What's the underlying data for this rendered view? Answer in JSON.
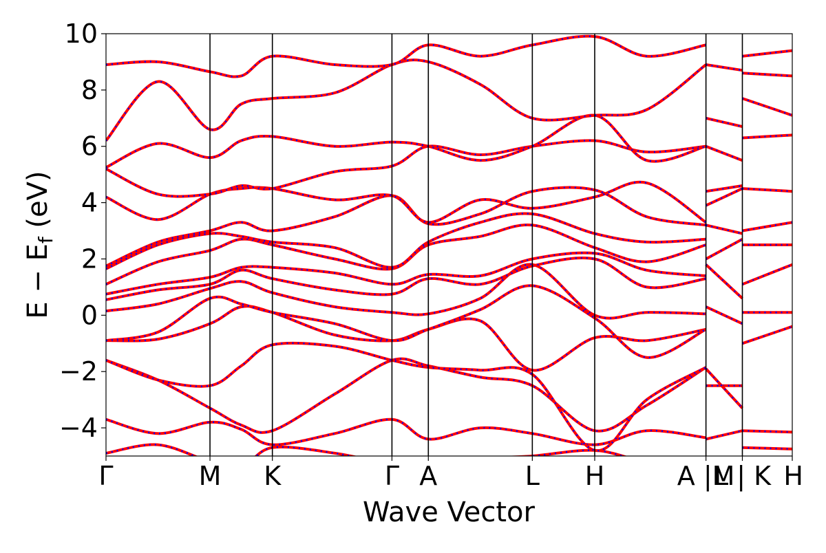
{
  "chart_data": {
    "type": "line",
    "title": "",
    "xlabel": "Wave Vector",
    "ylabel": "E − E",
    "ylabel_subscript": "f",
    "ylabel_unit": " (eV)",
    "ylim": [
      -5,
      10
    ],
    "yticks": [
      -4,
      -2,
      0,
      2,
      4,
      6,
      8,
      10
    ],
    "ytick_labels": [
      "−4",
      "−2",
      "0",
      "2",
      "4",
      "6",
      "8",
      "10"
    ],
    "xlim": [
      0,
      6.6
    ],
    "kpoint_ticks": [
      {
        "x": 0.0,
        "label": "Γ"
      },
      {
        "x": 1.0,
        "label": "M"
      },
      {
        "x": 1.6,
        "label": "K"
      },
      {
        "x": 2.75,
        "label": "Γ"
      },
      {
        "x": 3.1,
        "label": "A"
      },
      {
        "x": 4.1,
        "label": "L"
      },
      {
        "x": 4.7,
        "label": "H"
      },
      {
        "x": 5.77,
        "label": "A |M"
      },
      {
        "x": 6.12,
        "label": "L | K"
      },
      {
        "x": 6.6,
        "label": "H"
      }
    ],
    "grid": false,
    "legend": "none",
    "colors": {
      "band_solid": "#ff0000",
      "band_dashed": "#0000ff",
      "axes": "#000000"
    },
    "series": [
      {
        "x": [
          0,
          0.5,
          1.0,
          1.3,
          1.6,
          2.2,
          2.75,
          3.1,
          3.6,
          4.1,
          4.7,
          5.2,
          5.77
        ],
        "y": [
          -4.9,
          -4.6,
          -5.2,
          -5.4,
          -4.7,
          -4.9,
          -5.3,
          -5.4,
          -5.1,
          -5.0,
          -4.8,
          -5.2,
          -5.3
        ]
      },
      {
        "x": [
          0,
          0.5,
          1.0,
          1.3,
          1.6,
          2.2,
          2.75,
          3.1,
          3.6,
          4.1,
          4.7,
          5.2,
          5.77
        ],
        "y": [
          -3.7,
          -4.2,
          -3.8,
          -4.05,
          -4.6,
          -4.2,
          -3.7,
          -4.4,
          -4.0,
          -4.2,
          -4.6,
          -4.1,
          -4.35
        ]
      },
      {
        "x": [
          0,
          0.5,
          1.0,
          1.3,
          1.6,
          2.2,
          2.75,
          3.1,
          3.6,
          4.1,
          4.7,
          5.2,
          5.77
        ],
        "y": [
          -1.6,
          -2.3,
          -3.3,
          -3.9,
          -4.1,
          -2.8,
          -1.6,
          -1.8,
          -2.2,
          -2.5,
          -4.1,
          -3.2,
          -1.85
        ]
      },
      {
        "x": [
          0,
          0.5,
          1.0,
          1.3,
          1.6,
          2.2,
          2.75,
          3.1,
          3.6,
          4.1,
          4.7,
          5.2,
          5.77
        ],
        "y": [
          -1.6,
          -2.3,
          -2.5,
          -1.8,
          -1.05,
          -1.1,
          -1.6,
          -1.85,
          -1.95,
          -2.1,
          -4.8,
          -3.0,
          -1.85
        ]
      },
      {
        "x": [
          0,
          0.5,
          1.0,
          1.3,
          1.6,
          2.2,
          2.75,
          3.1,
          3.6,
          4.1,
          4.7,
          5.2,
          5.77
        ],
        "y": [
          -0.9,
          -0.85,
          -0.3,
          0.3,
          0.1,
          -0.7,
          -0.9,
          -0.5,
          -0.2,
          -1.95,
          -0.8,
          -0.9,
          -0.5
        ]
      },
      {
        "x": [
          0,
          0.5,
          1.0,
          1.3,
          1.6,
          2.2,
          2.75,
          3.1,
          3.6,
          4.1,
          4.7,
          5.2,
          5.77
        ],
        "y": [
          -0.9,
          -0.6,
          0.6,
          0.4,
          0.1,
          -0.3,
          -0.9,
          -0.5,
          0.2,
          1.05,
          -0.1,
          -1.5,
          -0.5
        ]
      },
      {
        "x": [
          0,
          0.5,
          1.0,
          1.3,
          1.6,
          2.2,
          2.75,
          3.1,
          3.6,
          4.1,
          4.7,
          5.2,
          5.77
        ],
        "y": [
          0.15,
          0.4,
          0.95,
          1.2,
          0.8,
          0.3,
          0.1,
          0.05,
          0.6,
          1.8,
          0.0,
          0.1,
          0.05
        ]
      },
      {
        "x": [
          0,
          0.5,
          1.0,
          1.3,
          1.6,
          2.2,
          2.75,
          3.1,
          3.6,
          4.1,
          4.7,
          5.2,
          5.77
        ],
        "y": [
          0.55,
          0.9,
          1.1,
          1.6,
          1.3,
          0.9,
          0.75,
          1.3,
          1.1,
          1.75,
          2.0,
          1.0,
          1.3
        ]
      },
      {
        "x": [
          0,
          0.5,
          1.0,
          1.3,
          1.6,
          2.2,
          2.75,
          3.1,
          3.6,
          4.1,
          4.7,
          5.2,
          5.77
        ],
        "y": [
          0.75,
          1.1,
          1.35,
          1.7,
          1.7,
          1.5,
          1.1,
          1.45,
          1.4,
          2.0,
          2.2,
          1.6,
          1.4
        ]
      },
      {
        "x": [
          0,
          0.5,
          1.0,
          1.3,
          1.6,
          2.2,
          2.75,
          3.1,
          3.6,
          4.1,
          4.7,
          5.2,
          5.77
        ],
        "y": [
          1.1,
          1.9,
          2.3,
          2.7,
          2.5,
          2.0,
          1.65,
          2.5,
          2.8,
          3.2,
          2.4,
          1.9,
          2.5
        ]
      },
      {
        "x": [
          0,
          0.5,
          1.0,
          1.3,
          1.6,
          2.2,
          2.75,
          3.1,
          3.6,
          4.1,
          4.7,
          5.2,
          5.77
        ],
        "y": [
          1.65,
          2.5,
          2.9,
          2.8,
          2.6,
          2.4,
          1.7,
          2.6,
          3.3,
          3.6,
          2.9,
          2.6,
          2.7
        ]
      },
      {
        "x": [
          0,
          0.5,
          1.0,
          1.3,
          1.6,
          2.2,
          2.75,
          3.1,
          3.6,
          4.1,
          4.7,
          5.2,
          5.77
        ],
        "y": [
          1.75,
          2.6,
          3.0,
          3.3,
          3.0,
          3.5,
          4.25,
          3.25,
          3.6,
          4.4,
          4.45,
          3.5,
          3.2
        ]
      },
      {
        "x": [
          0,
          0.5,
          1.0,
          1.3,
          1.6,
          2.2,
          2.75,
          3.1,
          3.6,
          4.1,
          4.7,
          5.2,
          5.77
        ],
        "y": [
          4.2,
          3.4,
          4.3,
          4.5,
          4.5,
          4.1,
          4.25,
          3.3,
          4.1,
          3.8,
          4.2,
          4.7,
          3.3
        ]
      },
      {
        "x": [
          0,
          0.5,
          1.0,
          1.3,
          1.6,
          2.2,
          2.75,
          3.1,
          3.6,
          4.1,
          4.7,
          5.2,
          5.77
        ],
        "y": [
          5.2,
          4.3,
          4.3,
          4.6,
          4.5,
          5.1,
          5.3,
          6.0,
          5.7,
          6.0,
          6.2,
          5.8,
          6.0
        ]
      },
      {
        "x": [
          0,
          0.5,
          1.0,
          1.3,
          1.6,
          2.2,
          2.75,
          3.1,
          3.6,
          4.1,
          4.7,
          5.2,
          5.77
        ],
        "y": [
          5.25,
          6.1,
          5.6,
          6.2,
          6.35,
          6.0,
          6.15,
          6.0,
          5.5,
          6.0,
          7.1,
          5.5,
          6.0
        ]
      },
      {
        "x": [
          0,
          0.5,
          1.0,
          1.3,
          1.6,
          2.2,
          2.75,
          3.1,
          3.6,
          4.1,
          4.7,
          5.2,
          5.77
        ],
        "y": [
          6.2,
          8.3,
          6.6,
          7.5,
          7.7,
          7.9,
          8.9,
          9.0,
          8.2,
          7.0,
          7.1,
          7.3,
          8.9
        ]
      },
      {
        "x": [
          0,
          0.5,
          1.0,
          1.3,
          1.6,
          2.2,
          2.75,
          3.1,
          3.6,
          4.1,
          4.7,
          5.2,
          5.77
        ],
        "y": [
          8.9,
          9.0,
          8.65,
          8.5,
          9.2,
          8.9,
          8.9,
          9.6,
          9.2,
          9.6,
          9.9,
          9.2,
          9.6
        ]
      },
      {
        "x": [
          5.77,
          6.12
        ],
        "y": [
          -4.4,
          -4.1
        ]
      },
      {
        "x": [
          5.77,
          6.12
        ],
        "y": [
          -2.5,
          -2.5
        ]
      },
      {
        "x": [
          5.77,
          6.12
        ],
        "y": [
          -1.9,
          -3.3
        ]
      },
      {
        "x": [
          5.77,
          6.12
        ],
        "y": [
          0.3,
          -0.3
        ]
      },
      {
        "x": [
          5.77,
          6.12
        ],
        "y": [
          1.8,
          0.6
        ]
      },
      {
        "x": [
          5.77,
          6.12
        ],
        "y": [
          2.0,
          2.7
        ]
      },
      {
        "x": [
          5.77,
          6.12
        ],
        "y": [
          3.2,
          2.9
        ]
      },
      {
        "x": [
          5.77,
          6.12
        ],
        "y": [
          3.9,
          4.5
        ]
      },
      {
        "x": [
          5.77,
          6.12
        ],
        "y": [
          4.4,
          4.6
        ]
      },
      {
        "x": [
          5.77,
          6.12
        ],
        "y": [
          6.0,
          5.5
        ]
      },
      {
        "x": [
          5.77,
          6.12
        ],
        "y": [
          7.0,
          6.7
        ]
      },
      {
        "x": [
          5.77,
          6.12
        ],
        "y": [
          8.9,
          8.7
        ]
      },
      {
        "x": [
          6.12,
          6.6
        ],
        "y": [
          -4.1,
          -4.15
        ]
      },
      {
        "x": [
          6.12,
          6.6
        ],
        "y": [
          -4.7,
          -4.75
        ]
      },
      {
        "x": [
          6.12,
          6.6
        ],
        "y": [
          -1.0,
          -0.4
        ]
      },
      {
        "x": [
          6.12,
          6.6
        ],
        "y": [
          0.1,
          0.1
        ]
      },
      {
        "x": [
          6.12,
          6.6
        ],
        "y": [
          1.1,
          1.8
        ]
      },
      {
        "x": [
          6.12,
          6.6
        ],
        "y": [
          2.5,
          2.5
        ]
      },
      {
        "x": [
          6.12,
          6.6
        ],
        "y": [
          3.0,
          3.3
        ]
      },
      {
        "x": [
          6.12,
          6.6
        ],
        "y": [
          4.5,
          4.4
        ]
      },
      {
        "x": [
          6.12,
          6.6
        ],
        "y": [
          6.3,
          6.4
        ]
      },
      {
        "x": [
          6.12,
          6.6
        ],
        "y": [
          7.7,
          7.1
        ]
      },
      {
        "x": [
          6.12,
          6.6
        ],
        "y": [
          8.6,
          8.5
        ]
      },
      {
        "x": [
          6.12,
          6.6
        ],
        "y": [
          9.2,
          9.4
        ]
      }
    ]
  }
}
